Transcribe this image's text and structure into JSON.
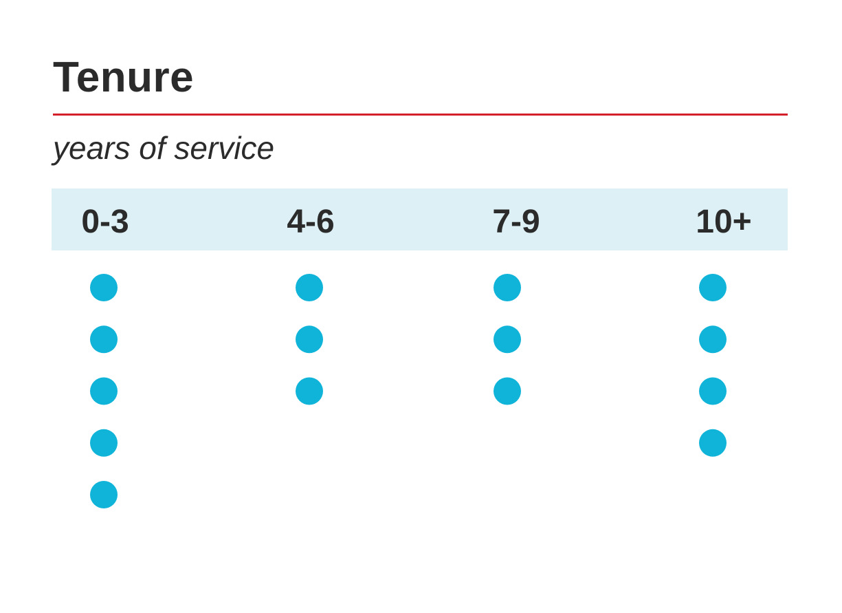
{
  "chart_data": {
    "type": "scatter",
    "title": "Tenure",
    "subtitle": "years of service",
    "categories": [
      "0-3",
      "4-6",
      "7-9",
      "10+"
    ],
    "values": [
      5,
      3,
      3,
      4
    ],
    "dot_color": "#10b4d8",
    "header_band_color": "#dcf0f5",
    "rule_color": "#d3202a"
  }
}
